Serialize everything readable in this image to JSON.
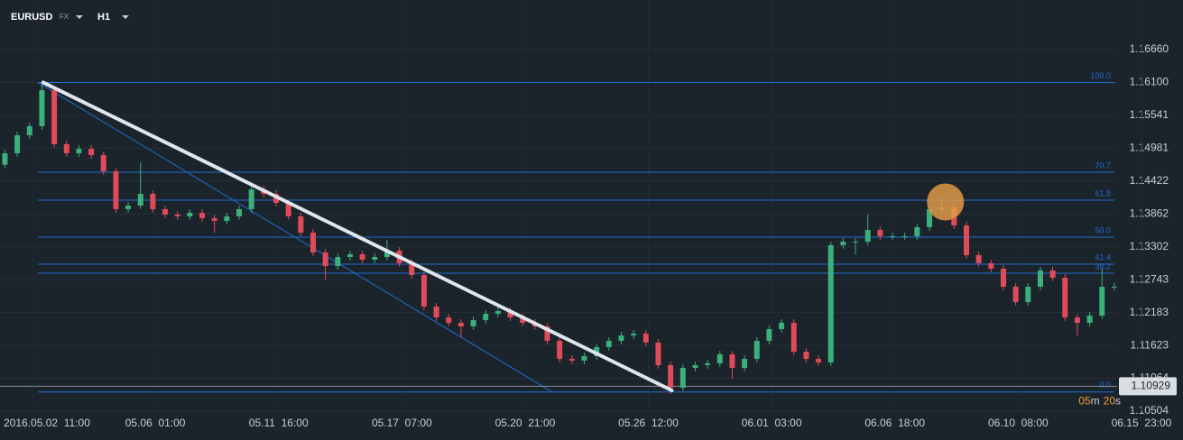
{
  "chart_data": {
    "type": "candlestick",
    "symbol": "EURUSD",
    "market": "FX",
    "timeframe": "H1",
    "up_color": "#3bb07a",
    "down_color": "#e04b5a",
    "grid": true,
    "x": [
      0,
      1,
      2,
      3,
      4,
      5,
      6,
      7,
      8,
      9,
      10,
      11,
      12,
      13,
      14,
      15,
      16,
      17,
      18,
      19,
      20,
      21,
      22,
      23,
      24,
      25,
      26,
      27,
      28,
      29,
      30,
      31,
      32,
      33,
      34,
      35,
      36,
      37,
      38,
      39,
      40,
      41,
      42,
      43,
      44,
      45,
      46,
      47,
      48,
      49,
      50,
      51,
      52,
      53,
      54,
      55,
      56,
      57,
      58,
      59,
      60,
      61,
      62,
      63,
      64,
      65,
      66,
      67,
      68,
      69,
      70,
      71,
      72,
      73,
      74,
      75,
      76,
      77,
      78,
      79,
      80,
      81,
      82,
      83,
      84,
      85,
      86,
      87,
      88,
      89,
      90
    ],
    "open": [
      1.147,
      1.14894,
      1.15201,
      1.15355,
      1.15969,
      1.15048,
      1.14894,
      1.14971,
      1.14864,
      1.14587,
      1.13943,
      1.14004,
      1.14204,
      1.13943,
      1.1385,
      1.1382,
      1.13881,
      1.13789,
      1.13743,
      1.1382,
      1.13943,
      1.1428,
      1.14204,
      1.1405,
      1.1382,
      1.13543,
      1.13206,
      1.12975,
      1.13129,
      1.13175,
      1.13083,
      1.13129,
      1.13236,
      1.13022,
      1.12822,
      1.12285,
      1.121,
      1.12008,
      1.11947,
      1.12054,
      1.12162,
      1.12208,
      1.121,
      1.12008,
      1.11947,
      1.11701,
      1.11394,
      1.11364,
      1.1144,
      1.11594,
      1.11701,
      1.11793,
      1.11824,
      1.11671,
      1.11287,
      1.10903,
      1.11241,
      1.11287,
      1.11318,
      1.11471,
      1.11241,
      1.11394,
      1.11701,
      1.11901,
      1.12008,
      1.11517,
      1.11394,
      1.11333,
      1.13329,
      1.1339,
      1.1339,
      1.13589,
      1.13482,
      1.13482,
      1.13482,
      1.13636,
      1.13943,
      1.13973,
      1.13666,
      1.1316,
      1.13022,
      1.12929,
      1.12622,
      1.12361,
      1.12622,
      1.12899,
      1.12776,
      1.121,
      1.12008,
      1.12131,
      1.12622
    ],
    "high": [
      1.14954,
      1.15261,
      1.15415,
      1.161,
      1.16029,
      1.15108,
      1.15031,
      1.15031,
      1.14924,
      1.14647,
      1.14064,
      1.14741,
      1.14264,
      1.14003,
      1.1391,
      1.13941,
      1.13941,
      1.13849,
      1.1388,
      1.14003,
      1.1434,
      1.1434,
      1.14264,
      1.1411,
      1.1388,
      1.13603,
      1.13266,
      1.13189,
      1.13235,
      1.13235,
      1.13189,
      1.1342,
      1.13296,
      1.13082,
      1.12882,
      1.12345,
      1.1216,
      1.12068,
      1.12114,
      1.12222,
      1.12268,
      1.12268,
      1.1216,
      1.12068,
      1.12007,
      1.11761,
      1.11454,
      1.115,
      1.11654,
      1.11761,
      1.11853,
      1.11884,
      1.11884,
      1.11731,
      1.11347,
      1.11301,
      1.11347,
      1.11378,
      1.11531,
      1.11531,
      1.11454,
      1.11761,
      1.11961,
      1.12068,
      1.12068,
      1.11577,
      1.11454,
      1.13389,
      1.1345,
      1.1345,
      1.1385,
      1.13649,
      1.13542,
      1.13542,
      1.13696,
      1.14003,
      1.141,
      1.14033,
      1.13726,
      1.1322,
      1.13082,
      1.12989,
      1.12682,
      1.12682,
      1.12959,
      1.12959,
      1.12836,
      1.1216,
      1.12191,
      1.12929,
      1.12682
    ],
    "low": [
      1.1464,
      1.14834,
      1.15141,
      1.15295,
      1.14988,
      1.14834,
      1.14834,
      1.14804,
      1.14527,
      1.13883,
      1.13883,
      1.13944,
      1.13883,
      1.1379,
      1.1376,
      1.1376,
      1.13729,
      1.13543,
      1.13683,
      1.1376,
      1.13883,
      1.14144,
      1.1399,
      1.1376,
      1.13483,
      1.13146,
      1.12745,
      1.12915,
      1.13069,
      1.13023,
      1.13023,
      1.13069,
      1.12962,
      1.12762,
      1.12225,
      1.1204,
      1.11948,
      1.1176,
      1.11887,
      1.11994,
      1.12102,
      1.1204,
      1.11948,
      1.11887,
      1.11641,
      1.11334,
      1.11304,
      1.11304,
      1.1138,
      1.11534,
      1.11641,
      1.11733,
      1.11611,
      1.11227,
      1.10796,
      1.10843,
      1.11181,
      1.11227,
      1.11258,
      1.11057,
      1.11181,
      1.11334,
      1.11641,
      1.11841,
      1.11457,
      1.11334,
      1.11273,
      1.11273,
      1.13269,
      1.13175,
      1.1333,
      1.13422,
      1.13422,
      1.13422,
      1.13422,
      1.13576,
      1.13883,
      1.13606,
      1.131,
      1.12962,
      1.12869,
      1.12562,
      1.12301,
      1.12301,
      1.12562,
      1.12716,
      1.1204,
      1.11793,
      1.11948,
      1.12071,
      1.12562
    ],
    "close": [
      1.14894,
      1.15201,
      1.15355,
      1.15969,
      1.15048,
      1.14894,
      1.14971,
      1.14864,
      1.14587,
      1.13943,
      1.14004,
      1.14204,
      1.13943,
      1.1385,
      1.1382,
      1.13881,
      1.13789,
      1.13743,
      1.1382,
      1.13943,
      1.1428,
      1.14204,
      1.1405,
      1.1382,
      1.13543,
      1.13206,
      1.12975,
      1.13129,
      1.13175,
      1.13083,
      1.13129,
      1.13236,
      1.13022,
      1.12822,
      1.12285,
      1.121,
      1.12008,
      1.11947,
      1.12054,
      1.12162,
      1.12208,
      1.121,
      1.12008,
      1.11947,
      1.11701,
      1.11394,
      1.11364,
      1.1144,
      1.11594,
      1.11701,
      1.11793,
      1.11824,
      1.11671,
      1.11287,
      1.10903,
      1.11241,
      1.11287,
      1.11318,
      1.11471,
      1.11241,
      1.11394,
      1.11701,
      1.11901,
      1.12008,
      1.11517,
      1.11394,
      1.11333,
      1.13329,
      1.1339,
      1.1339,
      1.13589,
      1.13482,
      1.13482,
      1.13482,
      1.13636,
      1.13943,
      1.13973,
      1.13666,
      1.1316,
      1.13022,
      1.12929,
      1.12622,
      1.12361,
      1.12622,
      1.12899,
      1.12776,
      1.121,
      1.12008,
      1.12131,
      1.12622,
      1.12622
    ],
    "xlim": [
      -0.4,
      95.57
    ],
    "xticks": [
      {
        "value": 2.2,
        "label": "2016.05.02  11:00"
      },
      {
        "value": 12.2,
        "label": "05.06  01:00"
      },
      {
        "value": 22.2,
        "label": "05.11  16:00"
      },
      {
        "value": 32.2,
        "label": "05.17  07:00"
      },
      {
        "value": 42.2,
        "label": "05.20  21:00"
      },
      {
        "value": 52.2,
        "label": "05.26  12:00"
      },
      {
        "value": 62.2,
        "label": "06.01  03:00"
      },
      {
        "value": 72.2,
        "label": "06.06  18:00"
      },
      {
        "value": 82.2,
        "label": "06.10  08:00"
      },
      {
        "value": 92.2,
        "label": "06.15  23:00"
      }
    ],
    "ylim": [
      1.10504,
      1.17504
    ],
    "yticks": [
      {
        "value": 1.1666,
        "label": "1.16660"
      },
      {
        "value": 1.161,
        "label": "1.16100"
      },
      1.15541,
      1.14981,
      1.14422,
      1.13862,
      1.13302,
      1.12743,
      1.12183,
      1.11623,
      1.11064,
      1.10504
    ],
    "fibonacci": {
      "color": "#1f6fd6",
      "x": [
        2.67,
        90
      ],
      "levels": [
        {
          "label": "100.0",
          "price": 1.161
        },
        {
          "label": "70.7",
          "price": 1.14572
        },
        {
          "label": "61.8",
          "price": 1.14096
        },
        {
          "label": "50.0",
          "price": 1.13467
        },
        {
          "label": "41.4",
          "price": 1.13006
        },
        {
          "label": "38.2",
          "price": 1.12853
        },
        {
          "label": "0.0",
          "price": 1.1083
        }
      ]
    },
    "channel_line": {
      "color": "#1f6fd6",
      "x": [
        2.67,
        44.4
      ],
      "y": [
        1.161,
        1.1083
      ]
    },
    "trendline": {
      "color": "#dfe6ee",
      "x": [
        3.1,
        54.1
      ],
      "y": [
        1.161,
        1.10857
      ]
    },
    "highlight": {
      "color": "#e8a04a",
      "x": 76.3,
      "y": 1.14065
    },
    "last_price": 1.10929,
    "countdown": {
      "minutes": "05",
      "minutes_unit": "m",
      "seconds": "20",
      "seconds_unit": "s"
    }
  }
}
